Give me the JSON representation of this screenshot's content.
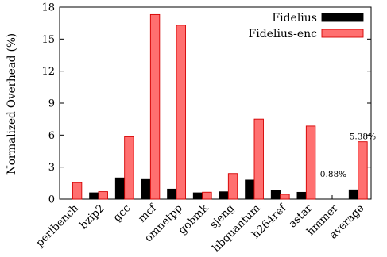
{
  "chart_data": {
    "type": "bar",
    "title": "",
    "xlabel": "",
    "ylabel": "Normalized Overhead (%)",
    "ylim": [
      0,
      18
    ],
    "yticks": [
      0,
      3,
      6,
      9,
      12,
      15,
      18
    ],
    "grid": false,
    "legend_position": "top-right",
    "categories": [
      "perlbench",
      "bzip2",
      "gcc",
      "mcf",
      "omnetpp",
      "gobmk",
      "sjeng",
      "libquantum",
      "h264ref",
      "astar",
      "hmmer",
      "average"
    ],
    "series": [
      {
        "name": "Fidelius",
        "color": "#000000",
        "values": [
          0.0,
          0.6,
          2.0,
          1.85,
          0.95,
          0.6,
          0.7,
          1.8,
          0.8,
          0.65,
          0.0,
          0.88
        ]
      },
      {
        "name": "Fidelius-enc",
        "color": "#ff7070",
        "values": [
          1.55,
          0.7,
          5.85,
          17.3,
          16.3,
          0.65,
          2.4,
          7.5,
          0.45,
          6.85,
          0.0,
          5.38
        ]
      }
    ],
    "annotations": [
      {
        "text": "0.88%",
        "category": "average",
        "series": "Fidelius"
      },
      {
        "text": "5.38%",
        "category": "average",
        "series": "Fidelius-enc"
      }
    ]
  }
}
